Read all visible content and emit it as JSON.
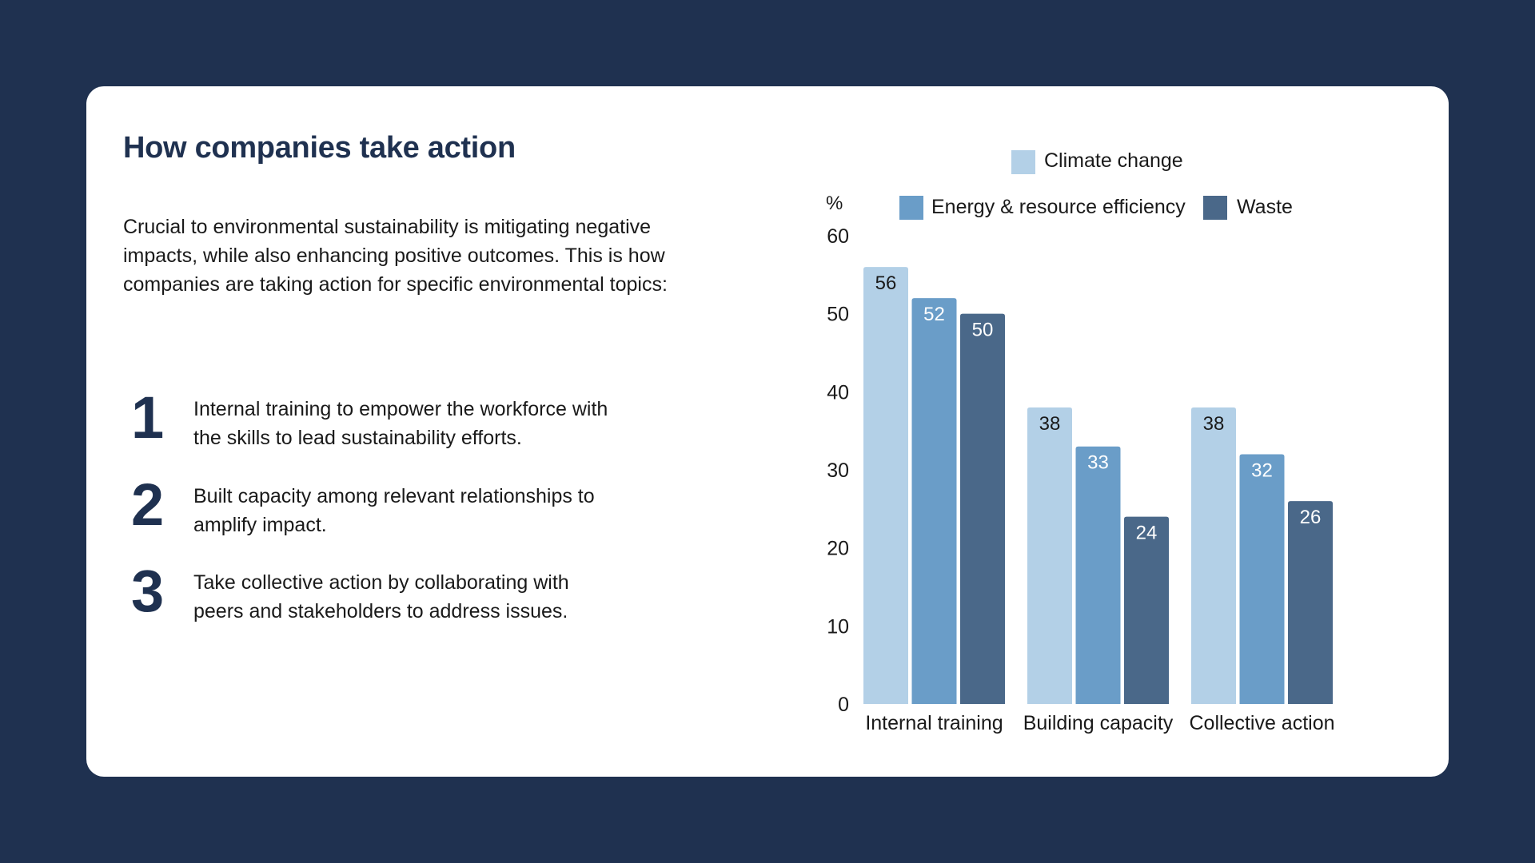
{
  "title": "How companies take action",
  "intro": "Crucial to environmental sustainability is mitigating negative impacts, while also enhancing positive outcomes. This is how companies are taking action for specific environmental topics:",
  "steps": [
    {
      "number": "1",
      "line1": "Internal training to empower the workforce with",
      "line2": "the skills to lead sustainability efforts."
    },
    {
      "number": "2",
      "line1": "Built capacity among relevant relationships to",
      "line2": "amplify impact."
    },
    {
      "number": "3",
      "line1": "Take collective action by collaborating with",
      "line2": "peers and stakeholders to address issues."
    }
  ],
  "chart_data": {
    "type": "bar",
    "title": "",
    "xlabel": "",
    "ylabel": "%",
    "ylim": [
      0,
      60
    ],
    "yticks": [
      0,
      10,
      20,
      30,
      40,
      50,
      60
    ],
    "categories": [
      "Internal training",
      "Building capacity",
      "Collective action"
    ],
    "series": [
      {
        "name": "Climate change",
        "color": "#b3d0e7",
        "label_color": "#1a1a1a",
        "values": [
          56,
          38,
          38
        ]
      },
      {
        "name": "Energy & resource efficiency",
        "color": "#6a9dc8",
        "label_color": "#ffffff",
        "values": [
          52,
          33,
          32
        ]
      },
      {
        "name": "Waste",
        "color": "#4a6889",
        "label_color": "#ffffff",
        "values": [
          50,
          24,
          26
        ]
      }
    ],
    "legend_position": "top",
    "grid": false
  }
}
